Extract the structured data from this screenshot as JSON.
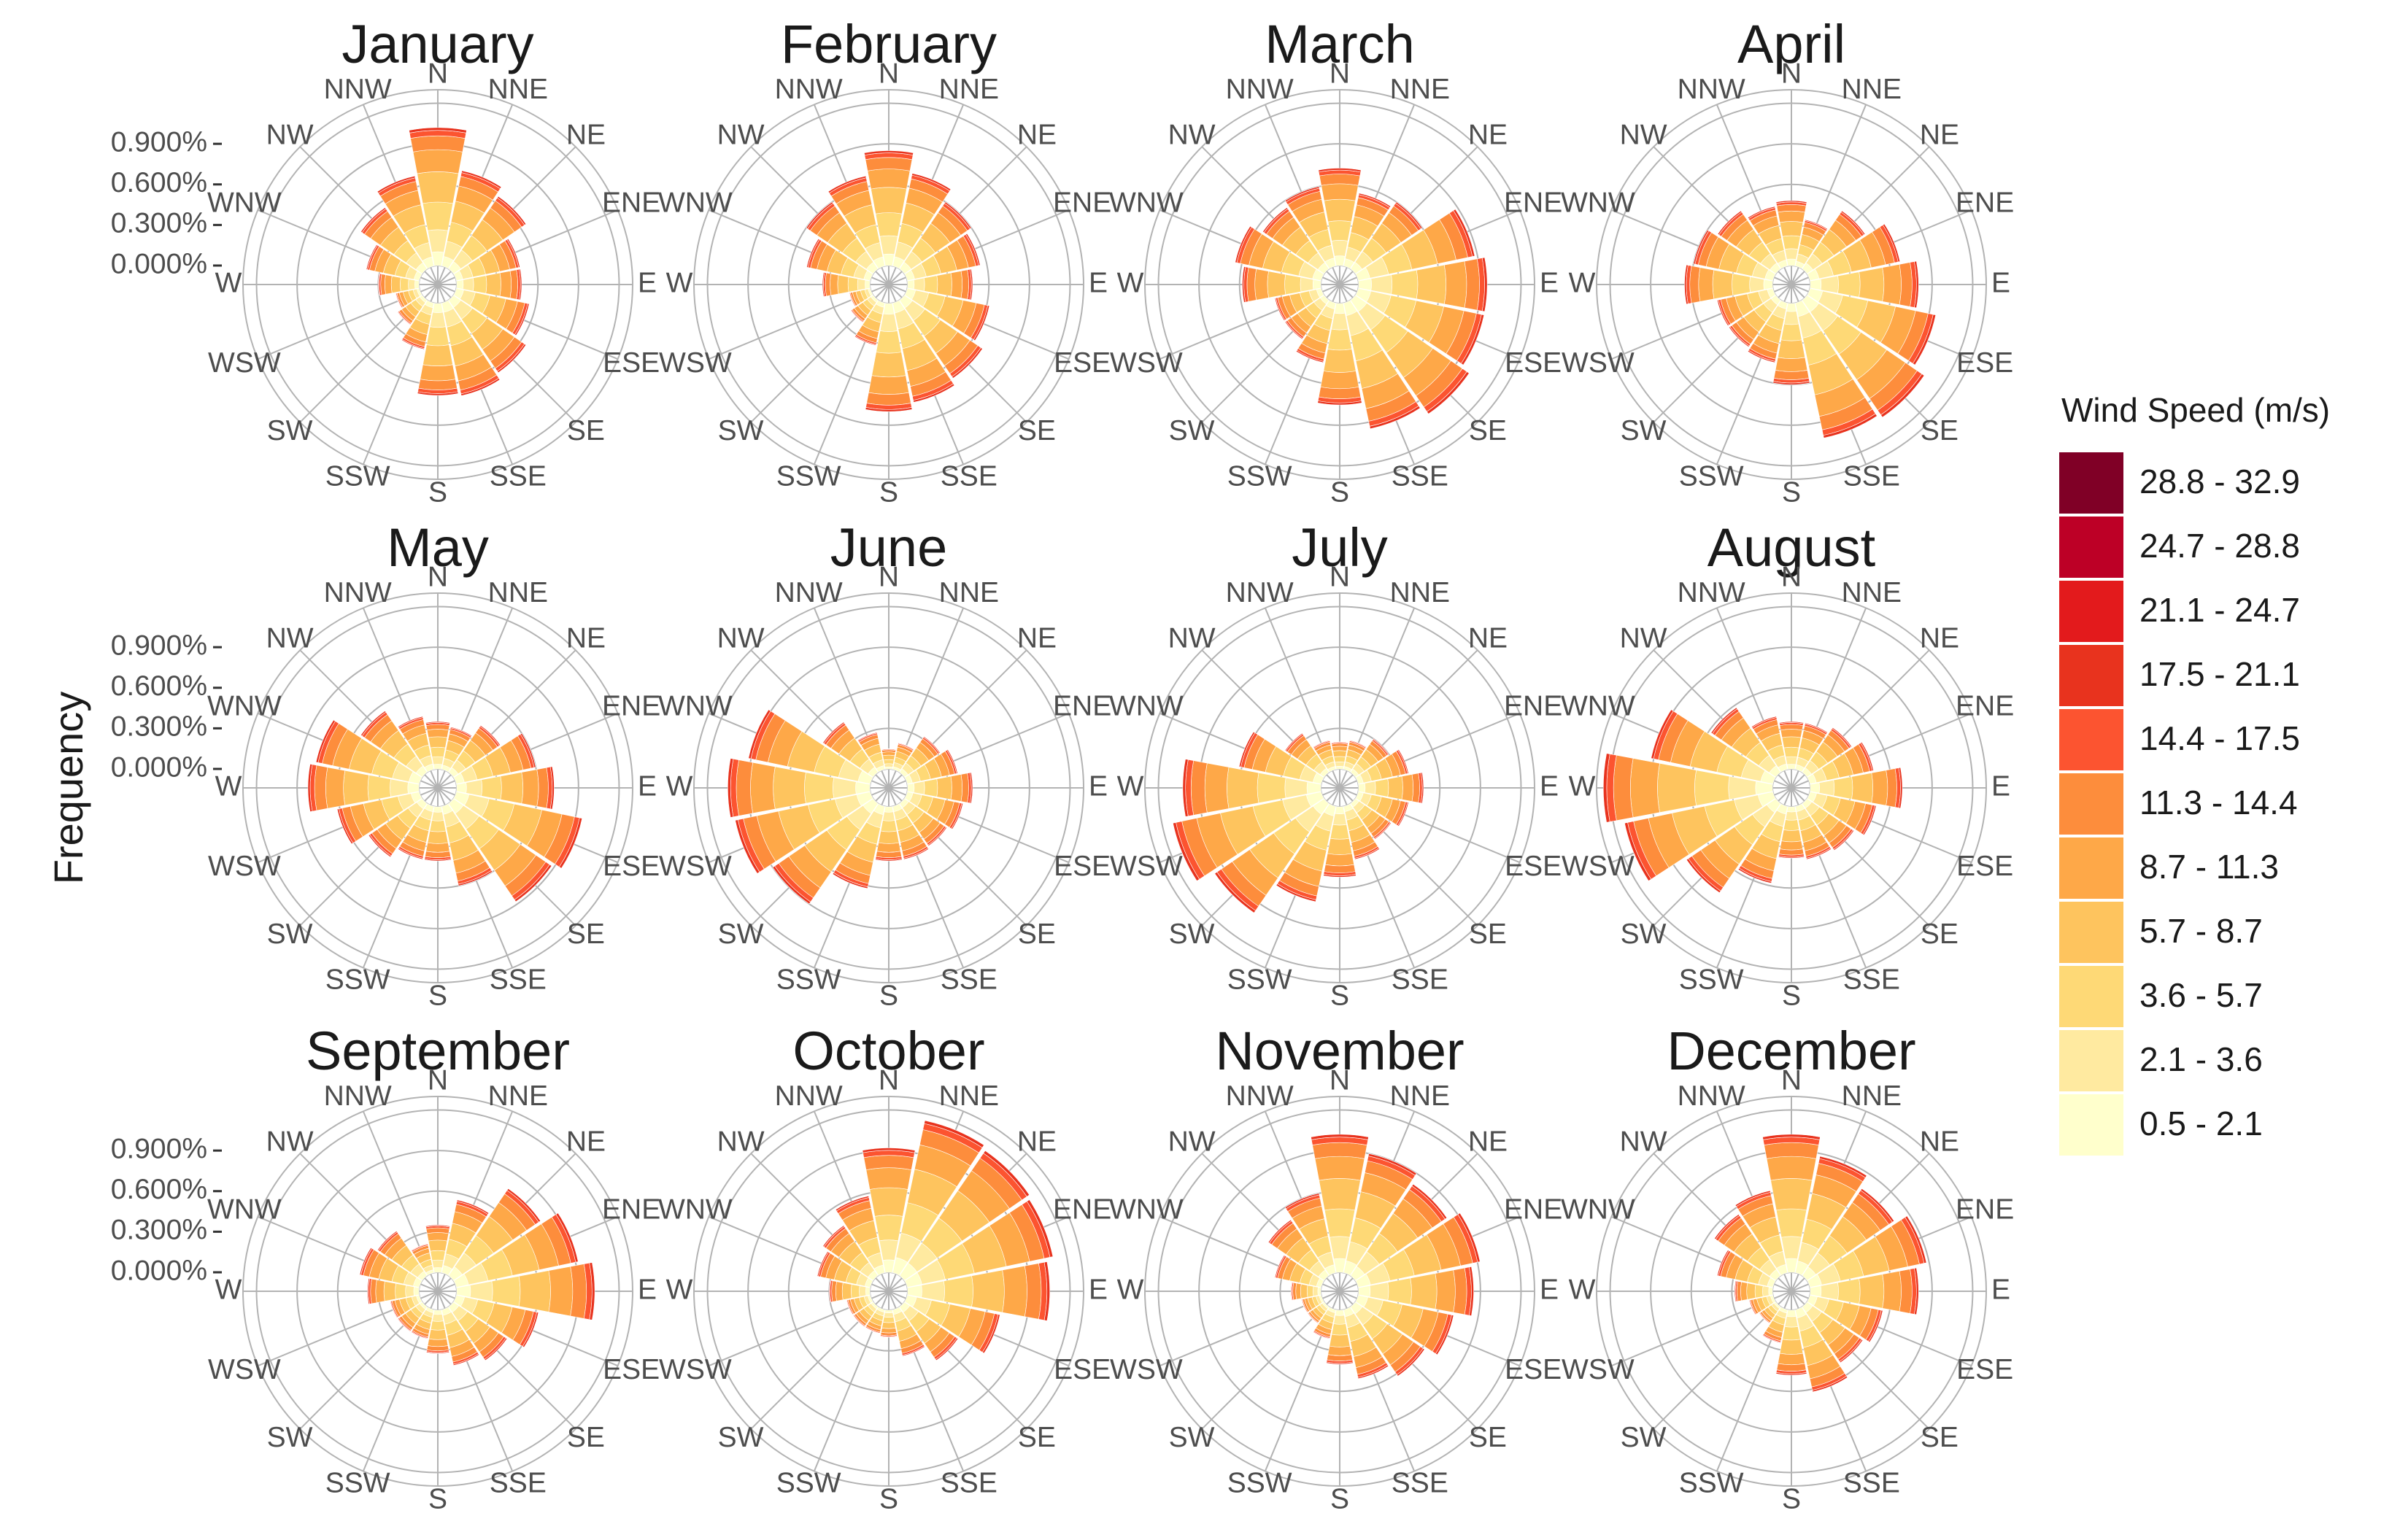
{
  "chart_data": {
    "type": "windrose",
    "ylabel": "Frequency",
    "radial_ticks": [
      "0.000%",
      "0.300%",
      "0.600%",
      "0.900%"
    ],
    "radial_tick_values": [
      0,
      0.3,
      0.6,
      0.9
    ],
    "radial_max": 1.3,
    "directions": [
      "N",
      "NNE",
      "NE",
      "ENE",
      "E",
      "ESE",
      "SE",
      "SSE",
      "S",
      "SSW",
      "SW",
      "WSW",
      "W",
      "WNW",
      "NW",
      "NNW"
    ],
    "legend": {
      "title": "Wind Speed (m/s)",
      "bins": [
        "28.8 - 32.9",
        "24.7 - 28.8",
        "21.1 - 24.7",
        "17.5 - 21.1",
        "14.4 - 17.5",
        "11.3 - 14.4",
        "8.7 - 11.3",
        "5.7 - 8.7",
        "3.6 - 5.7",
        "2.1 - 3.6",
        "0.5 - 2.1"
      ],
      "colors": [
        "#800026",
        "#bd0026",
        "#e31a1c",
        "#e8331e",
        "#fc5430",
        "#fd8d3c",
        "#fea848",
        "#fec45e",
        "#fed976",
        "#ffeaa0",
        "#ffffcc"
      ]
    },
    "months": [
      {
        "name": "January",
        "totals": [
          1.02,
          0.72,
          0.65,
          0.48,
          0.48,
          0.55,
          0.65,
          0.7,
          0.68,
          0.35,
          0.22,
          0.18,
          0.3,
          0.4,
          0.55,
          0.68
        ]
      },
      {
        "name": "February",
        "totals": [
          0.85,
          0.7,
          0.6,
          0.55,
          0.48,
          0.62,
          0.7,
          0.75,
          0.8,
          0.32,
          0.2,
          0.16,
          0.35,
          0.48,
          0.6,
          0.68
        ]
      },
      {
        "name": "March",
        "totals": [
          0.72,
          0.55,
          0.6,
          0.88,
          0.95,
          0.95,
          1.02,
          0.95,
          0.75,
          0.45,
          0.35,
          0.35,
          0.58,
          0.65,
          0.55,
          0.6
        ]
      },
      {
        "name": "April",
        "totals": [
          0.48,
          0.35,
          0.52,
          0.68,
          0.8,
          0.95,
          1.05,
          1.02,
          0.6,
          0.45,
          0.42,
          0.42,
          0.65,
          0.6,
          0.52,
          0.45
        ]
      },
      {
        "name": "May",
        "totals": [
          0.35,
          0.32,
          0.42,
          0.6,
          0.72,
          0.95,
          0.88,
          0.6,
          0.4,
          0.4,
          0.48,
          0.62,
          0.82,
          0.78,
          0.55,
          0.4
        ]
      },
      {
        "name": "June",
        "totals": [
          0.15,
          0.2,
          0.32,
          0.38,
          0.48,
          0.42,
          0.38,
          0.4,
          0.4,
          0.62,
          0.9,
          1.02,
          1.05,
          0.92,
          0.45,
          0.28
        ]
      },
      {
        "name": "July",
        "totals": [
          0.2,
          0.22,
          0.3,
          0.38,
          0.48,
          0.38,
          0.32,
          0.4,
          0.52,
          0.72,
          0.98,
          1.12,
          1.02,
          0.62,
          0.35,
          0.22
        ]
      },
      {
        "name": "August",
        "totals": [
          0.35,
          0.35,
          0.4,
          0.48,
          0.68,
          0.5,
          0.42,
          0.4,
          0.38,
          0.58,
          0.8,
          1.12,
          1.25,
          0.92,
          0.58,
          0.4
        ]
      },
      {
        "name": "September",
        "totals": [
          0.35,
          0.55,
          0.78,
          0.92,
          1.02,
          0.62,
          0.48,
          0.42,
          0.32,
          0.22,
          0.22,
          0.22,
          0.38,
          0.45,
          0.4,
          0.22
        ]
      },
      {
        "name": "October",
        "totals": [
          0.92,
          1.15,
          1.12,
          1.1,
          1.05,
          0.7,
          0.48,
          0.35,
          0.2,
          0.18,
          0.18,
          0.18,
          0.3,
          0.4,
          0.45,
          0.58
        ]
      },
      {
        "name": "November",
        "totals": [
          1.02,
          0.9,
          0.82,
          0.92,
          0.85,
          0.72,
          0.62,
          0.52,
          0.4,
          0.22,
          0.15,
          0.15,
          0.22,
          0.35,
          0.5,
          0.6
        ]
      },
      {
        "name": "December",
        "totals": [
          1.02,
          0.88,
          0.78,
          0.88,
          0.8,
          0.55,
          0.5,
          0.62,
          0.48,
          0.25,
          0.15,
          0.18,
          0.28,
          0.42,
          0.55,
          0.62
        ]
      }
    ],
    "bin_fractions": [
      0.0,
      0.0,
      0.0,
      0.02,
      0.04,
      0.1,
      0.16,
      0.22,
      0.2,
      0.16,
      0.1
    ],
    "grid": true,
    "legend_position": "right"
  }
}
